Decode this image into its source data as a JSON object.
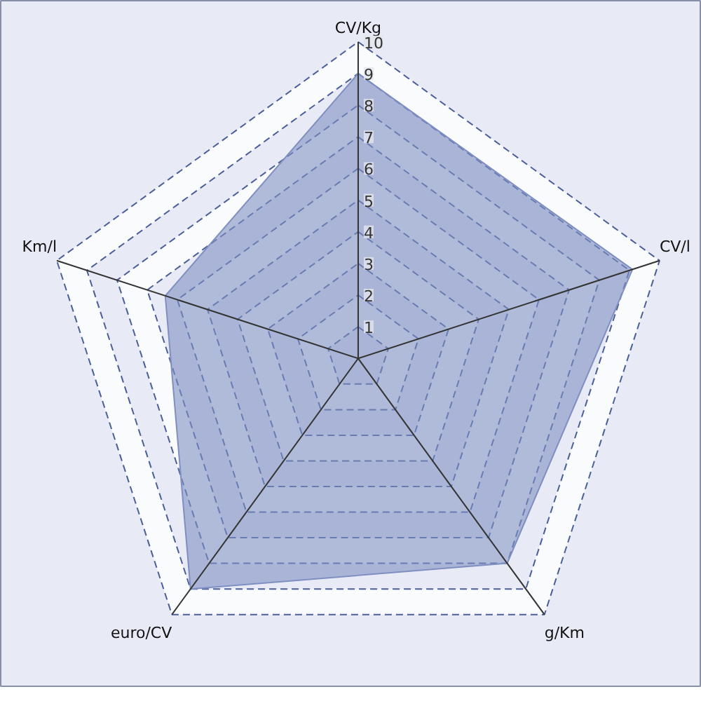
{
  "chart_data": {
    "type": "radar",
    "categories": [
      "CV/Kg",
      "CV/l",
      "g/Km",
      "euro/CV",
      "Km/l"
    ],
    "series": [
      {
        "color": "#7f8fc2",
        "values": [
          9.0,
          9.1,
          8.0,
          9.0,
          6.4
        ]
      }
    ],
    "ylim": [
      0,
      10
    ],
    "yticks": [
      1,
      2,
      3,
      4,
      5,
      6,
      7,
      8,
      9,
      10
    ],
    "grid": true,
    "marker": "none",
    "line_style": "solid"
  }
}
